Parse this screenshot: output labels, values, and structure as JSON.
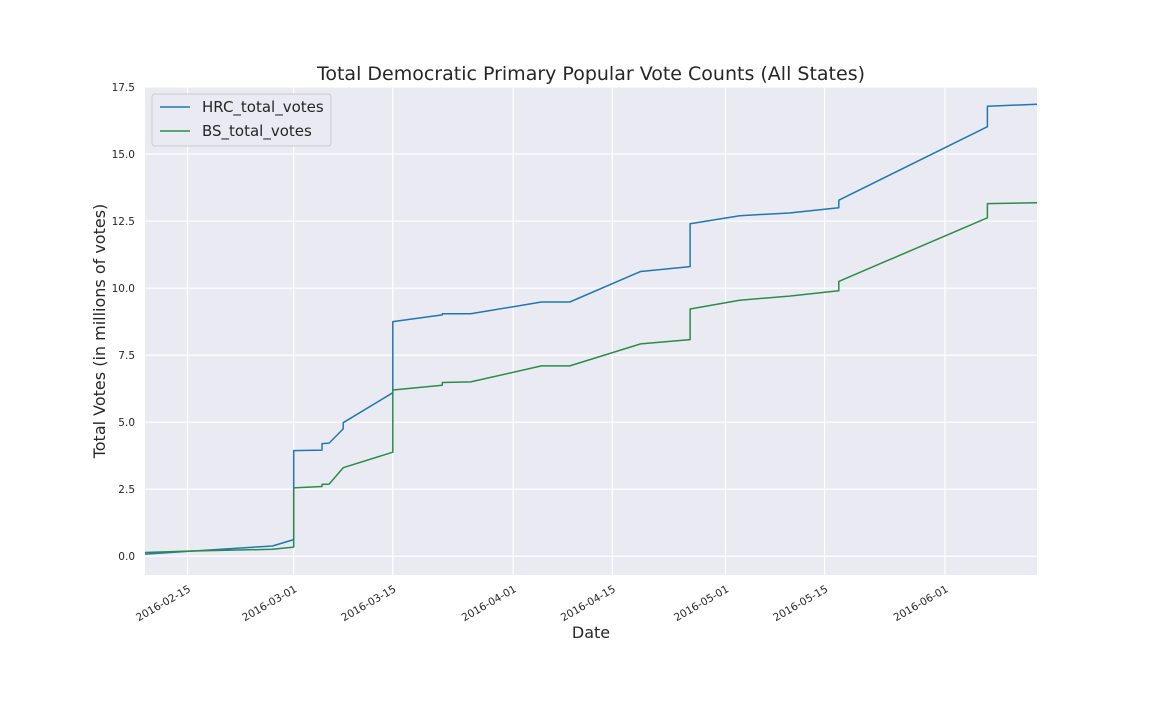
{
  "chart_data": {
    "type": "line",
    "title": "Total Democratic Primary Popular Vote Counts (All States)",
    "xlabel": "Date",
    "ylabel": "Total Votes (in millions of votes)",
    "xlim": [
      "2016-02-09",
      "2016-06-14"
    ],
    "ylim": [
      -0.7,
      17.5
    ],
    "x_ticks": [
      "2016-02-15",
      "2016-03-01",
      "2016-03-15",
      "2016-04-01",
      "2016-04-15",
      "2016-05-01",
      "2016-05-15",
      "2016-06-01"
    ],
    "y_ticks": [
      "0.0",
      "2.5",
      "5.0",
      "7.5",
      "10.0",
      "12.5",
      "15.0",
      "17.5"
    ],
    "grid": true,
    "legend_position": "top-left",
    "series": [
      {
        "name": "HRC_total_votes",
        "color": "#1f77b4",
        "points": [
          [
            "2016-02-09",
            0.08
          ],
          [
            "2016-02-15",
            0.18
          ],
          [
            "2016-02-27",
            0.38
          ],
          [
            "2016-03-01",
            0.62
          ],
          [
            "2016-03-01",
            3.94
          ],
          [
            "2016-03-05",
            3.96
          ],
          [
            "2016-03-05",
            4.2
          ],
          [
            "2016-03-06",
            4.22
          ],
          [
            "2016-03-08",
            4.75
          ],
          [
            "2016-03-08",
            4.98
          ],
          [
            "2016-03-15",
            6.1
          ],
          [
            "2016-03-15",
            8.75
          ],
          [
            "2016-03-22",
            9.0
          ],
          [
            "2016-03-22",
            9.04
          ],
          [
            "2016-03-26",
            9.04
          ],
          [
            "2016-04-05",
            9.48
          ],
          [
            "2016-04-09",
            9.48
          ],
          [
            "2016-04-19",
            10.62
          ],
          [
            "2016-04-26",
            10.8
          ],
          [
            "2016-04-26",
            12.4
          ],
          [
            "2016-05-03",
            12.7
          ],
          [
            "2016-05-10",
            12.8
          ],
          [
            "2016-05-17",
            13.0
          ],
          [
            "2016-05-17",
            13.28
          ],
          [
            "2016-06-07",
            16.02
          ],
          [
            "2016-06-07",
            16.78
          ],
          [
            "2016-06-14",
            16.86
          ]
        ]
      },
      {
        "name": "BS_total_votes",
        "color": "#2a8c4a",
        "points": [
          [
            "2016-02-09",
            0.14
          ],
          [
            "2016-02-15",
            0.19
          ],
          [
            "2016-02-27",
            0.26
          ],
          [
            "2016-03-01",
            0.34
          ],
          [
            "2016-03-01",
            2.55
          ],
          [
            "2016-03-05",
            2.6
          ],
          [
            "2016-03-05",
            2.68
          ],
          [
            "2016-03-06",
            2.69
          ],
          [
            "2016-03-08",
            3.3
          ],
          [
            "2016-03-15",
            3.88
          ],
          [
            "2016-03-15",
            6.2
          ],
          [
            "2016-03-22",
            6.38
          ],
          [
            "2016-03-22",
            6.48
          ],
          [
            "2016-03-26",
            6.5
          ],
          [
            "2016-04-05",
            7.1
          ],
          [
            "2016-04-09",
            7.1
          ],
          [
            "2016-04-19",
            7.92
          ],
          [
            "2016-04-26",
            8.08
          ],
          [
            "2016-04-26",
            9.22
          ],
          [
            "2016-05-03",
            9.55
          ],
          [
            "2016-05-10",
            9.7
          ],
          [
            "2016-05-17",
            9.9
          ],
          [
            "2016-05-17",
            10.25
          ],
          [
            "2016-06-07",
            12.62
          ],
          [
            "2016-06-07",
            13.15
          ],
          [
            "2016-06-14",
            13.18
          ]
        ]
      }
    ]
  }
}
